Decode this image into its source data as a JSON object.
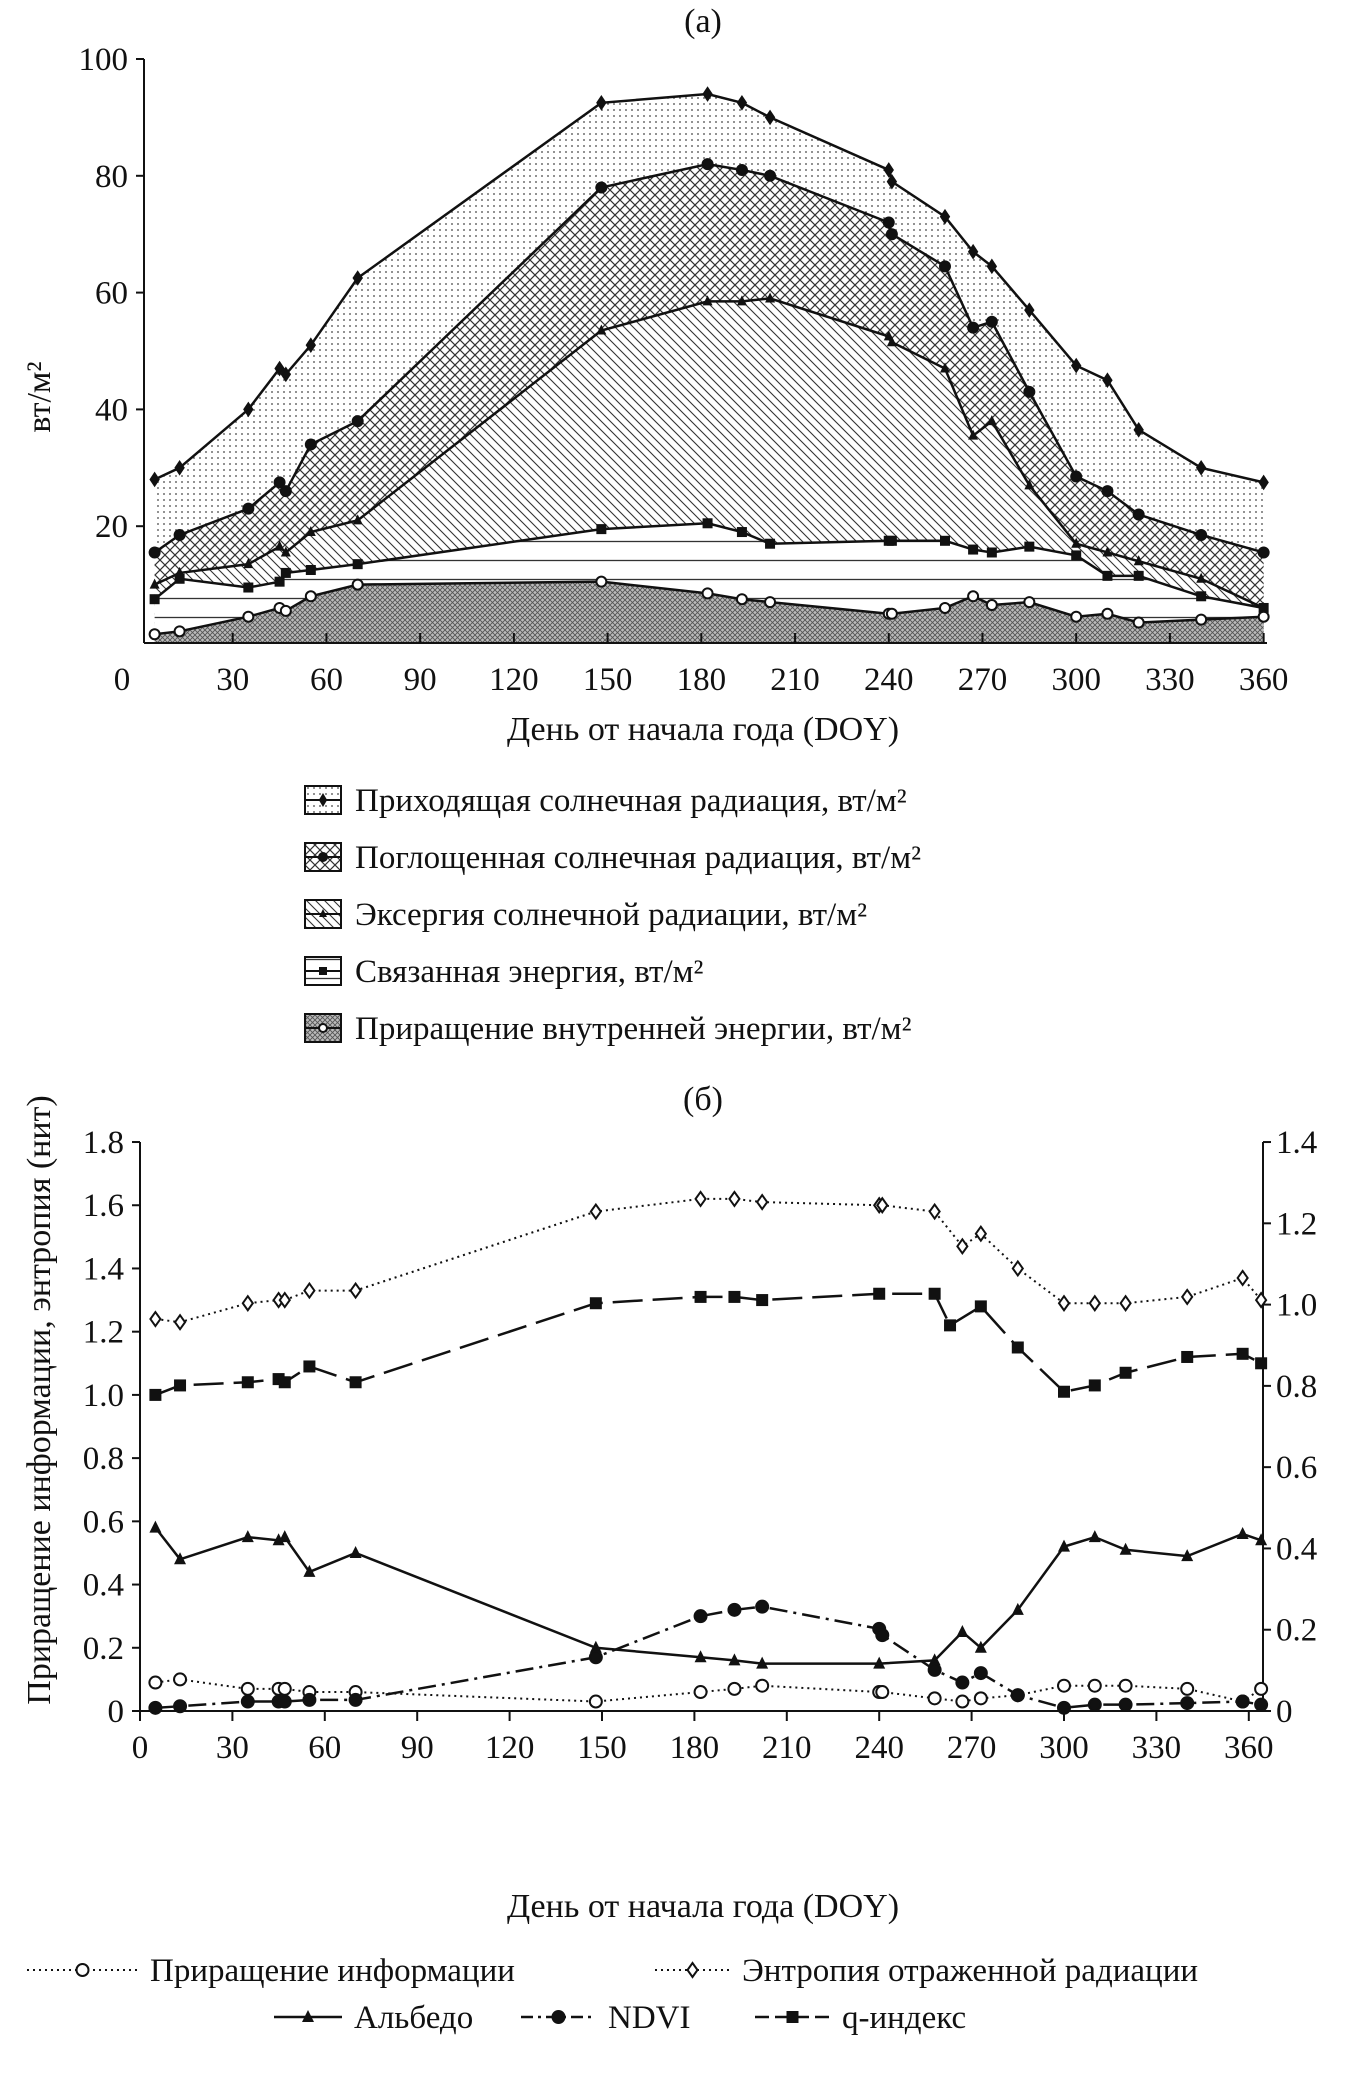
{
  "chart_data": [
    {
      "panel_title": "(a)",
      "type": "area",
      "xlabel": "День от начала года (DOY)",
      "ylabel": "вт/м²",
      "xlim": [
        0,
        365
      ],
      "ylim": [
        0,
        100
      ],
      "xticks": [
        0,
        30,
        60,
        90,
        120,
        150,
        180,
        210,
        240,
        270,
        300,
        330,
        360
      ],
      "yticks": [
        20,
        40,
        60,
        80,
        100
      ],
      "legend_position": "bottom",
      "x": [
        5,
        13,
        35,
        45,
        47,
        55,
        70,
        148,
        182,
        193,
        202,
        240,
        241,
        258,
        267,
        273,
        285,
        300,
        310,
        320,
        340,
        360
      ],
      "series": [
        {
          "name": "Приходящая солнечная радиация, вт/м²",
          "marker": "diamond",
          "pattern": "dots",
          "values": [
            28,
            30,
            40,
            47,
            46,
            51,
            62.5,
            92.5,
            94,
            92.5,
            90,
            81,
            79,
            73,
            67,
            64.5,
            57,
            47.5,
            45,
            36.5,
            30,
            27.5
          ]
        },
        {
          "name": "Поглощенная солнечная радиация, вт/м²",
          "marker": "circle",
          "pattern": "cross",
          "values": [
            15.5,
            18.5,
            23,
            27.5,
            26,
            34,
            38,
            78,
            82,
            81,
            80,
            72,
            70,
            64.5,
            54,
            55,
            43,
            28.5,
            26,
            22,
            18.5,
            15.5
          ]
        },
        {
          "name": "Эксергия солнечной радиации, вт/м²",
          "marker": "triangle",
          "pattern": "diag",
          "values": [
            10,
            12,
            13.5,
            16.5,
            15.5,
            19,
            21,
            53.5,
            58.5,
            58.5,
            59,
            52.5,
            51.5,
            47,
            35.5,
            38,
            27,
            17,
            15.5,
            14,
            11,
            6
          ]
        },
        {
          "name": "Связанная энергия, вт/м²",
          "marker": "square",
          "pattern": "hlines",
          "values": [
            7.5,
            11,
            9.5,
            10.5,
            12,
            12.5,
            13.5,
            19.5,
            20.5,
            19,
            17,
            17.5,
            17.5,
            17.5,
            16,
            15.5,
            16.5,
            15,
            11.5,
            11.5,
            8,
            6
          ]
        },
        {
          "name": "Приращение внутренней энергии, вт/м²",
          "marker": "open-circle",
          "pattern": "dense",
          "values": [
            1.5,
            2,
            4.5,
            6,
            5.5,
            8,
            10,
            10.5,
            8.5,
            7.5,
            7,
            5,
            5,
            6,
            8,
            6.5,
            7,
            4.5,
            5,
            3.5,
            4,
            4.5
          ]
        }
      ]
    },
    {
      "panel_title": "(б)",
      "type": "line",
      "xlabel": "День от начала года (DOY)",
      "ylabel": "Приращение информации, энтропия (нит)",
      "xlim": [
        0,
        365
      ],
      "ylim": [
        0,
        1.8
      ],
      "ylim_right": [
        0,
        1.4
      ],
      "xticks": [
        0,
        30,
        60,
        90,
        120,
        150,
        180,
        210,
        240,
        270,
        300,
        330,
        360
      ],
      "yticks": [
        "0",
        "0.2",
        "0.4",
        "0.6",
        "0.8",
        "1.0",
        "1.2",
        "1.4",
        "1.6",
        "1.8"
      ],
      "yticks_right": [
        "0",
        "0.2",
        "0.4",
        "0.6",
        "0.8",
        "1.0",
        "1.2",
        "1.4"
      ],
      "legend_position": "bottom",
      "series": [
        {
          "name": "Приращение информации",
          "marker": "open-circle",
          "style": "dotted",
          "x": [
            5,
            13,
            35,
            45,
            47,
            55,
            70,
            148,
            182,
            193,
            202,
            240,
            241,
            258,
            267,
            273,
            285,
            300,
            310,
            320,
            340,
            358,
            364
          ],
          "values": [
            0.09,
            0.1,
            0.07,
            0.07,
            0.07,
            0.06,
            0.06,
            0.03,
            0.06,
            0.07,
            0.08,
            0.06,
            0.06,
            0.04,
            0.03,
            0.04,
            0.05,
            0.08,
            0.08,
            0.08,
            0.07,
            0.03,
            0.07
          ]
        },
        {
          "name": "Энтропия отраженной радиации",
          "marker": "open-diamond",
          "style": "dotted",
          "x": [
            5,
            13,
            35,
            45,
            47,
            55,
            70,
            148,
            182,
            193,
            202,
            240,
            241,
            258,
            267,
            273,
            285,
            300,
            310,
            320,
            340,
            358,
            364
          ],
          "values": [
            1.24,
            1.23,
            1.29,
            1.3,
            1.3,
            1.33,
            1.33,
            1.58,
            1.62,
            1.62,
            1.61,
            1.6,
            1.6,
            1.58,
            1.47,
            1.51,
            1.4,
            1.29,
            1.29,
            1.29,
            1.31,
            1.37,
            1.3
          ]
        },
        {
          "name": "Альбедо",
          "marker": "triangle",
          "style": "solid",
          "x": [
            5,
            13,
            35,
            45,
            47,
            55,
            70,
            148,
            182,
            193,
            202,
            240,
            258,
            267,
            273,
            285,
            300,
            310,
            320,
            340,
            358,
            364
          ],
          "values": [
            0.58,
            0.48,
            0.55,
            0.54,
            0.55,
            0.44,
            0.5,
            0.2,
            0.17,
            0.16,
            0.15,
            0.15,
            0.16,
            0.25,
            0.2,
            0.32,
            0.52,
            0.55,
            0.51,
            0.49,
            0.56,
            0.54
          ]
        },
        {
          "name": "NDVI",
          "marker": "circle",
          "style": "dashdot",
          "x": [
            5,
            13,
            35,
            45,
            47,
            55,
            70,
            148,
            182,
            193,
            202,
            240,
            241,
            258,
            267,
            273,
            285,
            300,
            310,
            320,
            340,
            358,
            364
          ],
          "values": [
            0.01,
            0.015,
            0.03,
            0.03,
            0.03,
            0.035,
            0.035,
            0.17,
            0.3,
            0.32,
            0.33,
            0.26,
            0.24,
            0.13,
            0.09,
            0.12,
            0.05,
            0.01,
            0.02,
            0.02,
            0.025,
            0.03,
            0.02
          ]
        },
        {
          "name": "q-индекс",
          "marker": "square",
          "style": "longdash",
          "x": [
            5,
            13,
            35,
            45,
            47,
            55,
            70,
            148,
            182,
            193,
            202,
            240,
            258,
            263,
            273,
            285,
            300,
            310,
            320,
            340,
            358,
            364
          ],
          "values": [
            1.0,
            1.03,
            1.04,
            1.05,
            1.04,
            1.09,
            1.04,
            1.29,
            1.31,
            1.31,
            1.3,
            1.32,
            1.32,
            1.22,
            1.28,
            1.15,
            1.01,
            1.03,
            1.07,
            1.12,
            1.13,
            1.1
          ]
        }
      ]
    }
  ]
}
